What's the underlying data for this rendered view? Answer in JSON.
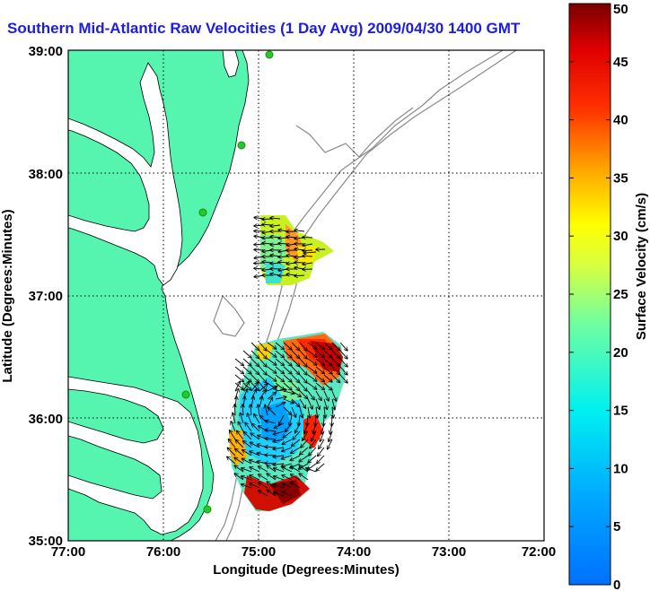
{
  "title": "Southern Mid-Atlantic Raw Velocities (1 Day Avg) 2009/04/30 1400 GMT",
  "map": {
    "xlabel": "Longitude (Degrees:Minutes)",
    "ylabel": "Latitude (Degrees:Minutes)",
    "xticks": [
      "77:00",
      "76:00",
      "75:00",
      "74:00",
      "73:00",
      "72:00"
    ],
    "yticks": [
      "39:00",
      "38:00",
      "37:00",
      "36:00",
      "35:00"
    ],
    "lon_range": [
      -77,
      -72
    ],
    "lat_range": [
      35,
      39
    ],
    "land_color": "#55f5b0",
    "station_color": "#22cc22",
    "grid": true
  },
  "colorbar": {
    "label": "Surface Velocity (cm/s)",
    "ticks": [
      "50",
      "45",
      "40",
      "35",
      "30",
      "25",
      "20",
      "15",
      "10",
      "5",
      "0"
    ],
    "range": [
      0,
      50
    ]
  }
}
